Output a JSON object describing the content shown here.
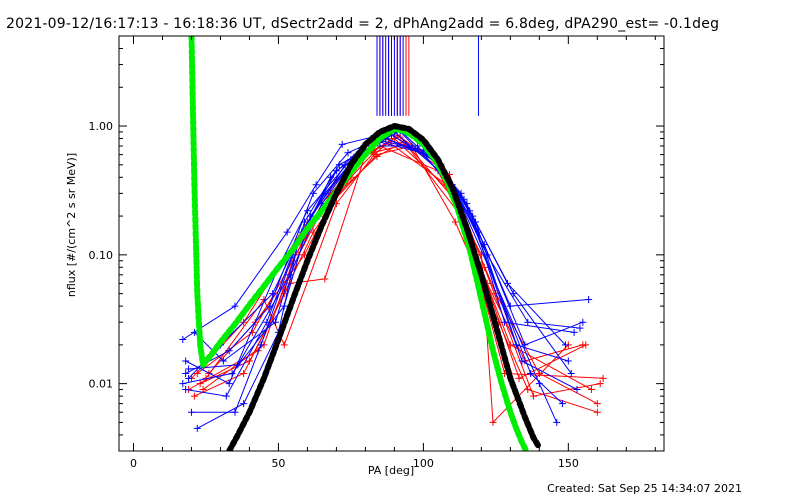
{
  "chart_data": {
    "type": "line",
    "title": "2021-09-12/16:17:13 - 16:18:36 UT, dSectr2add = 2, dPhAng2add = 6.8deg, dPA290_est= -0.1deg",
    "xlabel": "PA [deg]",
    "ylabel": "nflux [#/(cm^2 s sr MeV)]",
    "xlim": [
      -5,
      183
    ],
    "ylim": [
      0.003,
      5.0
    ],
    "yscale": "log",
    "x_ticks": [
      0,
      50,
      100,
      150
    ],
    "x_tick_labels": [
      "0",
      "50",
      "100",
      "150"
    ],
    "y_ticks": [
      0.01,
      0.1,
      1.0
    ],
    "y_tick_labels": [
      "0.01",
      "0.10",
      "1.00"
    ],
    "grid": false,
    "colors": {
      "red": "#ff0000",
      "blue": "#0000ff",
      "green": "#00ee00",
      "black": "#000000"
    },
    "series": [
      {
        "color": "red",
        "style": "line+cross",
        "traces": [
          [
            [
              20,
              0.011
            ],
            [
              38,
              0.03
            ],
            [
              60,
              0.18
            ],
            [
              70,
              0.38
            ],
            [
              82,
              0.75
            ],
            [
              92,
              0.82
            ],
            [
              112,
              0.25
            ],
            [
              125,
              0.05
            ],
            [
              140,
              0.012
            ],
            [
              160,
              0.007
            ]
          ],
          [
            [
              22,
              0.012
            ],
            [
              41,
              0.025
            ],
            [
              58,
              0.12
            ],
            [
              68,
              0.3
            ],
            [
              80,
              0.6
            ],
            [
              90,
              0.8
            ],
            [
              110,
              0.3
            ],
            [
              122,
              0.06
            ],
            [
              135,
              0.015
            ],
            [
              155,
              0.02
            ]
          ],
          [
            [
              24,
              0.009
            ],
            [
              45,
              0.02
            ],
            [
              55,
              0.09
            ],
            [
              65,
              0.25
            ],
            [
              78,
              0.55
            ],
            [
              88,
              0.75
            ],
            [
              108,
              0.35
            ],
            [
              118,
              0.1
            ],
            [
              130,
              0.02
            ],
            [
              158,
              0.009
            ]
          ],
          [
            [
              21,
              0.008
            ],
            [
              38,
              0.012
            ],
            [
              52,
              0.05
            ],
            [
              62,
              0.15
            ],
            [
              75,
              0.4
            ],
            [
              85,
              0.7
            ],
            [
              105,
              0.45
            ],
            [
              115,
              0.15
            ],
            [
              128,
              0.012
            ],
            [
              162,
              0.011
            ]
          ],
          [
            [
              23,
              0.01
            ],
            [
              40,
              0.015
            ],
            [
              54,
              0.06
            ],
            [
              66,
              0.065
            ],
            [
              80,
              0.6
            ],
            [
              94,
              0.72
            ],
            [
              113,
              0.2
            ],
            [
              120,
              0.1
            ],
            [
              124,
              0.005
            ],
            [
              150,
              0.02
            ]
          ],
          [
            [
              19,
              0.009
            ],
            [
              43,
              0.018
            ],
            [
              57,
              0.1
            ],
            [
              64,
              0.2
            ],
            [
              84,
              0.6
            ],
            [
              96,
              0.7
            ],
            [
              111,
              0.18
            ],
            [
              126,
              0.03
            ],
            [
              136,
              0.009
            ],
            [
              160,
              0.006
            ]
          ],
          [
            [
              25,
              0.011
            ],
            [
              45,
              0.045
            ],
            [
              52,
              0.02
            ],
            [
              70,
              0.25
            ],
            [
              83,
              0.6
            ],
            [
              91,
              0.85
            ],
            [
              106,
              0.5
            ],
            [
              117,
              0.12
            ],
            [
              133,
              0.011
            ],
            [
              156,
              0.02
            ]
          ],
          [
            [
              26,
              0.012
            ],
            [
              42,
              0.03
            ],
            [
              59,
              0.1
            ],
            [
              69,
              0.28
            ],
            [
              84,
              0.58
            ],
            [
              93,
              0.75
            ],
            [
              109,
              0.42
            ],
            [
              121,
              0.08
            ],
            [
              138,
              0.008
            ],
            [
              161,
              0.01
            ]
          ]
        ]
      },
      {
        "color": "blue",
        "style": "line+cross",
        "traces": [
          [
            [
              17,
              0.022
            ],
            [
              35,
              0.04
            ],
            [
              53,
              0.15
            ],
            [
              63,
              0.35
            ],
            [
              72,
              0.72
            ],
            [
              88,
              0.88
            ],
            [
              106,
              0.5
            ],
            [
              119,
              0.15
            ],
            [
              130,
              0.04
            ],
            [
              157,
              0.045
            ]
          ],
          [
            [
              18,
              0.015
            ],
            [
              33,
              0.01
            ],
            [
              50,
              0.08
            ],
            [
              60,
              0.22
            ],
            [
              75,
              0.55
            ],
            [
              90,
              0.9
            ],
            [
              108,
              0.4
            ],
            [
              121,
              0.12
            ],
            [
              135,
              0.02
            ],
            [
              155,
              0.03
            ]
          ],
          [
            [
              19,
              0.011
            ],
            [
              30,
              0.02
            ],
            [
              48,
              0.05
            ],
            [
              58,
              0.15
            ],
            [
              73,
              0.5
            ],
            [
              87,
              0.8
            ],
            [
              104,
              0.55
            ],
            [
              117,
              0.2
            ],
            [
              128,
              0.03
            ],
            [
              152,
              0.025
            ]
          ],
          [
            [
              18,
              0.009
            ],
            [
              32,
              0.008
            ],
            [
              46,
              0.03
            ],
            [
              56,
              0.12
            ],
            [
              70,
              0.45
            ],
            [
              85,
              0.75
            ],
            [
              102,
              0.6
            ],
            [
              115,
              0.25
            ],
            [
              132,
              0.02
            ],
            [
              150,
              0.015
            ]
          ],
          [
            [
              20,
              0.006
            ],
            [
              35,
              0.006
            ],
            [
              44,
              0.02
            ],
            [
              55,
              0.1
            ],
            [
              68,
              0.4
            ],
            [
              82,
              0.8
            ],
            [
              100,
              0.65
            ],
            [
              113,
              0.3
            ],
            [
              137,
              0.012
            ],
            [
              148,
              0.007
            ]
          ],
          [
            [
              22,
              0.0045
            ],
            [
              38,
              0.007
            ],
            [
              50,
              0.025
            ],
            [
              57,
              0.13
            ],
            [
              66,
              0.3
            ],
            [
              80,
              0.7
            ],
            [
              98,
              0.7
            ],
            [
              112,
              0.28
            ],
            [
              140,
              0.01
            ],
            [
              146,
              0.005
            ]
          ],
          [
            [
              17,
              0.01
            ],
            [
              34,
              0.012
            ],
            [
              52,
              0.04
            ],
            [
              61,
              0.2
            ],
            [
              77,
              0.6
            ],
            [
              92,
              0.92
            ],
            [
              107,
              0.45
            ],
            [
              118,
              0.18
            ],
            [
              134,
              0.015
            ],
            [
              153,
              0.009
            ]
          ],
          [
            [
              19,
              0.013
            ],
            [
              36,
              0.014
            ],
            [
              54,
              0.07
            ],
            [
              65,
              0.25
            ],
            [
              76,
              0.55
            ],
            [
              91,
              0.95
            ],
            [
              110,
              0.35
            ],
            [
              122,
              0.1
            ],
            [
              136,
              0.03
            ],
            [
              154,
              0.027
            ]
          ],
          [
            [
              21,
              0.025
            ],
            [
              31,
              0.015
            ],
            [
              49,
              0.03
            ],
            [
              59,
              0.18
            ],
            [
              71,
              0.5
            ],
            [
              89,
              0.85
            ],
            [
              105,
              0.52
            ],
            [
              116,
              0.22
            ],
            [
              131,
              0.05
            ],
            [
              151,
              0.012
            ]
          ],
          [
            [
              18,
              0.012
            ],
            [
              33,
              0.018
            ],
            [
              47,
              0.04
            ],
            [
              62,
              0.3
            ],
            [
              74,
              0.62
            ],
            [
              86,
              0.82
            ],
            [
              103,
              0.58
            ],
            [
              114,
              0.27
            ],
            [
              129,
              0.06
            ],
            [
              149,
              0.02
            ]
          ]
        ]
      },
      {
        "color": "green",
        "style": "thick-dots",
        "x": [
          20,
          21,
          22,
          23,
          24,
          25,
          27,
          30,
          35,
          40,
          45,
          50,
          55,
          60,
          65,
          70,
          75,
          80,
          85,
          90,
          93,
          96,
          100,
          104,
          108,
          112,
          116,
          120,
          124,
          127,
          130,
          132,
          134,
          135.5
        ],
        "y": [
          5.0,
          0.35,
          0.05,
          0.02,
          0.014,
          0.015,
          0.017,
          0.021,
          0.029,
          0.041,
          0.057,
          0.08,
          0.11,
          0.16,
          0.22,
          0.31,
          0.44,
          0.6,
          0.8,
          0.95,
          0.92,
          0.85,
          0.72,
          0.55,
          0.38,
          0.22,
          0.11,
          0.045,
          0.018,
          0.01,
          0.006,
          0.0045,
          0.0035,
          0.003
        ]
      },
      {
        "color": "black",
        "style": "thick-dots",
        "x": [
          33,
          36,
          40,
          45,
          50,
          55,
          60,
          65,
          70,
          75,
          80,
          85,
          90,
          95,
          100,
          105,
          110,
          115,
          120,
          125,
          130,
          135,
          138,
          140
        ],
        "y": [
          0.003,
          0.004,
          0.006,
          0.011,
          0.022,
          0.045,
          0.09,
          0.17,
          0.3,
          0.5,
          0.72,
          0.9,
          1.0,
          0.95,
          0.78,
          0.55,
          0.33,
          0.16,
          0.07,
          0.028,
          0.011,
          0.0055,
          0.0038,
          0.0032
        ]
      }
    ],
    "vertical_lines": {
      "red": [
        85,
        86,
        88,
        89,
        91,
        92,
        94,
        95
      ],
      "blue": [
        84,
        85,
        86,
        87,
        88,
        89,
        90,
        91,
        92,
        93,
        119
      ]
    }
  },
  "footer": {
    "created": "Created: Sat Sep 25 14:34:07 2021"
  }
}
